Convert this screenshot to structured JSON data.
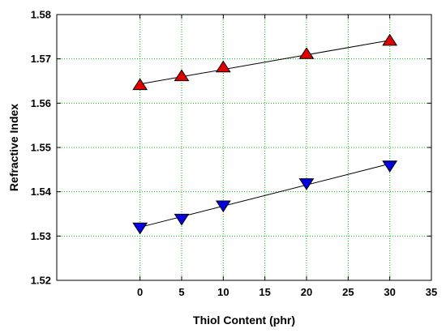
{
  "chart_data": {
    "type": "scatter",
    "xlabel": "Thiol Content (phr)",
    "ylabel": "Refractive Index",
    "xlim": [
      -10,
      35
    ],
    "ylim": [
      1.52,
      1.58
    ],
    "x_ticks": [
      0,
      5,
      10,
      15,
      20,
      25,
      30,
      35
    ],
    "y_ticks": [
      1.52,
      1.53,
      1.54,
      1.55,
      1.56,
      1.57,
      1.58
    ],
    "y_tick_labels": [
      "1.52",
      "1.53",
      "1.54",
      "1.55",
      "1.56",
      "1.57",
      "1.58"
    ],
    "grid": true,
    "grid_color": "#00c000",
    "series": [
      {
        "marker": "triangle-up",
        "color": "#e00000",
        "trendline": true,
        "x": [
          0,
          5,
          10,
          20,
          30
        ],
        "y": [
          1.564,
          1.566,
          1.568,
          1.571,
          1.574
        ]
      },
      {
        "marker": "triangle-down",
        "color": "#0000e0",
        "trendline": true,
        "x": [
          0,
          5,
          10,
          20,
          30
        ],
        "y": [
          1.532,
          1.534,
          1.537,
          1.542,
          1.546
        ]
      }
    ]
  }
}
